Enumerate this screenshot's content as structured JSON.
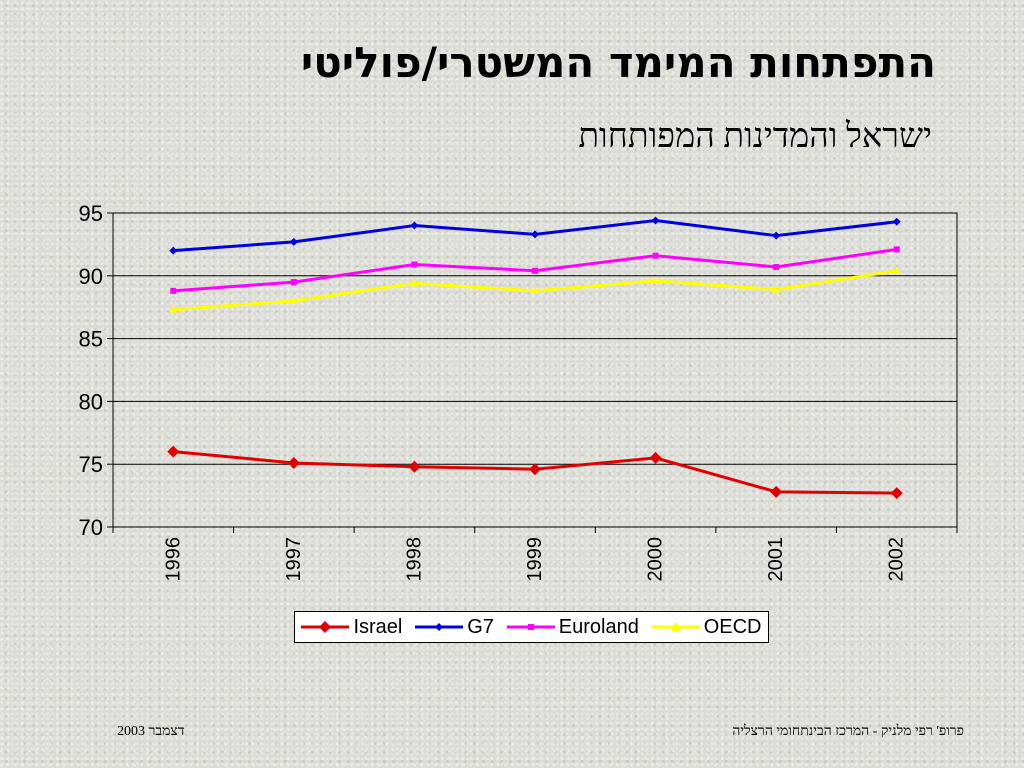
{
  "slide": {
    "title": "התפתחות המימד המשטרי/פוליטי",
    "subtitle": "ישראל והמדינות המפותחות",
    "footer_left": "דצמבר 2003",
    "footer_right": "פרופ' רפי מלניק - המרכז הבינתחומי הרצליה"
  },
  "chart_data": {
    "type": "line",
    "title": "",
    "xlabel": "",
    "ylabel": "",
    "categories": [
      "1996",
      "1997",
      "1998",
      "1999",
      "2000",
      "2001",
      "2002"
    ],
    "ylim": [
      70,
      95
    ],
    "yticks": [
      "70",
      "75",
      "80",
      "85",
      "90",
      "95"
    ],
    "grid": true,
    "legend_position": "bottom",
    "series": [
      {
        "name": "Israel",
        "color": "#e00000",
        "marker": "diamond",
        "values": [
          76.0,
          75.1,
          74.8,
          74.6,
          75.5,
          72.8,
          72.7
        ]
      },
      {
        "name": "G7",
        "color": "#0000e0",
        "marker": "diamond",
        "values": [
          92.0,
          92.7,
          94.0,
          93.3,
          94.4,
          93.2,
          94.3
        ]
      },
      {
        "name": "Euroland",
        "color": "#ff00ff",
        "marker": "square",
        "values": [
          88.8,
          89.5,
          90.9,
          90.4,
          91.6,
          90.7,
          92.1
        ]
      },
      {
        "name": "OECD",
        "color": "#ffff00",
        "marker": "triangle",
        "values": [
          87.3,
          88.0,
          89.4,
          88.8,
          89.6,
          88.9,
          90.4
        ]
      }
    ]
  }
}
